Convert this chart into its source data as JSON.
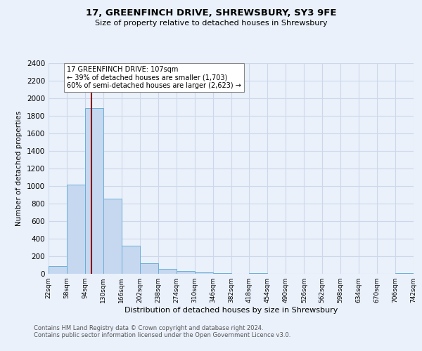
{
  "title": "17, GREENFINCH DRIVE, SHREWSBURY, SY3 9FE",
  "subtitle": "Size of property relative to detached houses in Shrewsbury",
  "xlabel": "Distribution of detached houses by size in Shrewsbury",
  "ylabel": "Number of detached properties",
  "footer_line1": "Contains HM Land Registry data © Crown copyright and database right 2024.",
  "footer_line2": "Contains public sector information licensed under the Open Government Licence v3.0.",
  "bin_edges": [
    22,
    58,
    94,
    130,
    166,
    202,
    238,
    274,
    310,
    346,
    382,
    418,
    454,
    490,
    526,
    562,
    598,
    634,
    670,
    706,
    742
  ],
  "bin_labels": [
    "22sqm",
    "58sqm",
    "94sqm",
    "130sqm",
    "166sqm",
    "202sqm",
    "238sqm",
    "274sqm",
    "310sqm",
    "346sqm",
    "382sqm",
    "418sqm",
    "454sqm",
    "490sqm",
    "526sqm",
    "562sqm",
    "598sqm",
    "634sqm",
    "670sqm",
    "706sqm",
    "742sqm"
  ],
  "counts": [
    90,
    1020,
    1890,
    860,
    320,
    120,
    55,
    35,
    20,
    10,
    0,
    5,
    0,
    0,
    3,
    0,
    0,
    0,
    0,
    5
  ],
  "bar_color": "#c5d8f0",
  "bar_edge_color": "#6baed6",
  "vline_x": 107,
  "vline_color": "#8b0000",
  "annotation_text": "17 GREENFINCH DRIVE: 107sqm\n← 39% of detached houses are smaller (1,703)\n60% of semi-detached houses are larger (2,623) →",
  "annotation_box_color": "#ffffff",
  "annotation_box_edge": "#888888",
  "ylim": [
    0,
    2400
  ],
  "yticks": [
    0,
    200,
    400,
    600,
    800,
    1000,
    1200,
    1400,
    1600,
    1800,
    2000,
    2200,
    2400
  ],
  "bg_color": "#eaf1fb",
  "plot_bg_color": "#eaf1fb",
  "grid_color": "#ccd8ea"
}
